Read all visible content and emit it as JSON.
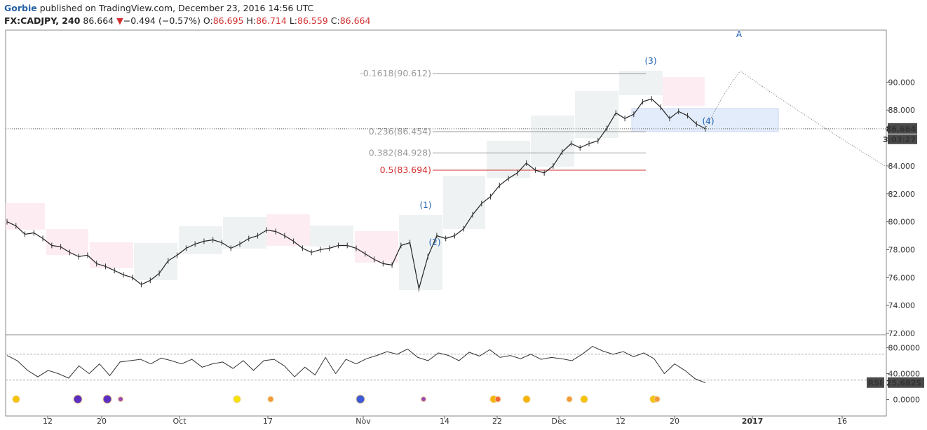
{
  "header": {
    "author": "Gorbie",
    "published_text": "published on TradingView.com, December 23, 2016 14:56 UTC"
  },
  "ohlc": {
    "symbol": "FX:CADJPY, 240",
    "last": "86.664",
    "change_arrow": "▼",
    "change": "−0.494 (−0.57%)",
    "o_label": "O:",
    "o": "86.695",
    "h_label": "H:",
    "h": "86.714",
    "l_label": "L:",
    "l": "86.559",
    "c_label": "C:",
    "c": "86.664"
  },
  "colors": {
    "accent_red": "#d32f2f",
    "wave_blue": "#1e5fb0",
    "bull_box": "#eef2f2",
    "bear_box": "#fdecf2",
    "target_box": "#e3ecfb",
    "price_tag": "#4a4a4a"
  },
  "chart_data": [
    {
      "type": "line",
      "name": "price",
      "y_axis": {
        "range": [
          72,
          92
        ],
        "ticks": [
          "72.000",
          "74.000",
          "76.000",
          "78.000",
          "80.000",
          "82.000",
          "84.000",
          "86.000",
          "88.000",
          "90.000"
        ]
      },
      "x_axis": {
        "ticks": [
          "12",
          "20",
          "Oct",
          "17",
          "Nov",
          "14",
          "22",
          "Dec",
          "12",
          "20",
          "2017",
          "16"
        ]
      },
      "series": [
        {
          "values": [
            80.0,
            79.7,
            79.1,
            79.2,
            78.8,
            78.3,
            78.2,
            77.8,
            77.5,
            77.6,
            77.0,
            76.8,
            76.5,
            76.2,
            76.0,
            75.5,
            75.8,
            76.3,
            77.2,
            77.6,
            78.1,
            78.4,
            78.6,
            78.7,
            78.5,
            78.1,
            78.4,
            78.8,
            79.0,
            79.4,
            79.3,
            79.0,
            78.6,
            78.1,
            77.8,
            78.0,
            78.1,
            78.3,
            78.3,
            78.1,
            77.7,
            77.3,
            77.0,
            76.9,
            78.3,
            78.5,
            75.2,
            77.5,
            79.0,
            78.8,
            79.0,
            79.5,
            80.5,
            81.3,
            81.8,
            82.6,
            83.1,
            83.5,
            84.2,
            83.7,
            83.5,
            84.0,
            85.0,
            85.6,
            85.3,
            85.6,
            85.8,
            86.7,
            87.8,
            87.4,
            87.7,
            88.6,
            88.8,
            88.2,
            87.4,
            87.9,
            87.6,
            87.0,
            86.66
          ]
        }
      ],
      "last_price_tag": "86.664",
      "countdown_tag": "3:03:27",
      "fib_levels": [
        {
          "label": "-0.1618(90.612)",
          "value": 90.612,
          "color": "#999999"
        },
        {
          "label": "0.236(86.454)",
          "value": 86.454,
          "color": "#999999"
        },
        {
          "label": "0.382(84.928)",
          "value": 84.928,
          "color": "#999999"
        },
        {
          "label": "0.5(83.694)",
          "value": 83.694,
          "color": "#d32f2f"
        }
      ],
      "wave_labels": [
        "(1)",
        "(2)",
        "(3)",
        "(4)",
        "A"
      ],
      "projection": {
        "target": 90.8,
        "end": 84.0
      }
    },
    {
      "type": "line",
      "name": "RSI",
      "y_axis": {
        "ticks": [
          "80.0000",
          "40.0000",
          "0.0000"
        ],
        "overbought": 70,
        "oversold": 30
      },
      "values": [
        68,
        60,
        45,
        35,
        45,
        40,
        33,
        52,
        40,
        55,
        37,
        58,
        60,
        62,
        55,
        64,
        60,
        55,
        62,
        50,
        55,
        58,
        48,
        60,
        45,
        60,
        62,
        52,
        35,
        50,
        38,
        65,
        40,
        62,
        55,
        63,
        68,
        74,
        70,
        78,
        65,
        60,
        72,
        68,
        60,
        73,
        67,
        77,
        65,
        68,
        63,
        70,
        62,
        65,
        63,
        60,
        70,
        82,
        75,
        70,
        74,
        66,
        72,
        63,
        40,
        55,
        45,
        32,
        25.68
      ],
      "value_tag_label": "RSI",
      "value_tag": "25.6825"
    }
  ]
}
